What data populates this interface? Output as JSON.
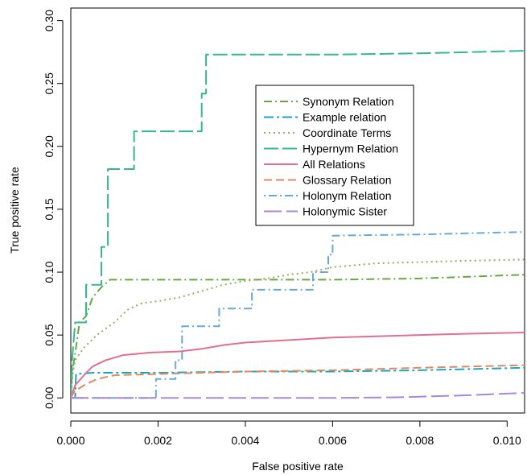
{
  "chart_data": {
    "type": "line",
    "title": "",
    "xlabel": "False positive rate",
    "ylabel": "True positive rate",
    "xlim": [
      0.0,
      0.0104
    ],
    "ylim": [
      -0.012,
      0.31
    ],
    "x_ticks": [
      0.0,
      0.002,
      0.004,
      0.006,
      0.008,
      0.01
    ],
    "x_tick_labels": [
      "0.000",
      "0.002",
      "0.004",
      "0.006",
      "0.008",
      "0.010"
    ],
    "y_ticks": [
      0.0,
      0.05,
      0.1,
      0.15,
      0.2,
      0.25,
      0.3
    ],
    "y_tick_labels": [
      "0.00",
      "0.05",
      "0.10",
      "0.15",
      "0.20",
      "0.25",
      "0.30"
    ],
    "grid": false,
    "legend_position": "top-center",
    "series": [
      {
        "name": "Synonym Relation",
        "color": "#66a844",
        "dash": "10,4,2,4",
        "points": [
          [
            0,
            0
          ],
          [
            3e-05,
            0.02
          ],
          [
            0.00012,
            0.04
          ],
          [
            0.0002,
            0.06
          ],
          [
            0.00035,
            0.065
          ],
          [
            0.0005,
            0.08
          ],
          [
            0.0007,
            0.088
          ],
          [
            0.0009,
            0.094
          ],
          [
            0.002,
            0.094
          ],
          [
            0.004,
            0.094
          ],
          [
            0.006,
            0.094
          ],
          [
            0.008,
            0.095
          ],
          [
            0.0104,
            0.098
          ]
        ]
      },
      {
        "name": "Example relation",
        "color": "#1aa6c0",
        "dash": "12,4,3,4",
        "points": [
          [
            0,
            0
          ],
          [
            0.0001,
            0.0
          ],
          [
            0.00012,
            0.019
          ],
          [
            0.0005,
            0.02
          ],
          [
            0.002,
            0.02
          ],
          [
            0.004,
            0.021
          ],
          [
            0.006,
            0.021
          ],
          [
            0.008,
            0.022
          ],
          [
            0.0104,
            0.024
          ]
        ]
      },
      {
        "name": "Coordinate Terms",
        "color": "#a0a860",
        "dash": "2,4",
        "points": [
          [
            0,
            0
          ],
          [
            5e-05,
            0.02
          ],
          [
            0.0001,
            0.03
          ],
          [
            0.0003,
            0.04
          ],
          [
            0.0006,
            0.05
          ],
          [
            0.001,
            0.06
          ],
          [
            0.0013,
            0.07
          ],
          [
            0.0016,
            0.075
          ],
          [
            0.002,
            0.077
          ],
          [
            0.0025,
            0.08
          ],
          [
            0.003,
            0.085
          ],
          [
            0.0035,
            0.09
          ],
          [
            0.004,
            0.093
          ],
          [
            0.0045,
            0.095
          ],
          [
            0.005,
            0.098
          ],
          [
            0.0055,
            0.1
          ],
          [
            0.006,
            0.104
          ],
          [
            0.007,
            0.107
          ],
          [
            0.008,
            0.108
          ],
          [
            0.009,
            0.109
          ],
          [
            0.0104,
            0.11
          ]
        ]
      },
      {
        "name": "Hypernym Relation",
        "color": "#33b890",
        "dash": "18,5",
        "points": [
          [
            0,
            0
          ],
          [
            3e-05,
            0.03
          ],
          [
            0.0001,
            0.06
          ],
          [
            0.00035,
            0.06
          ],
          [
            0.00035,
            0.09
          ],
          [
            0.0007,
            0.09
          ],
          [
            0.0007,
            0.12
          ],
          [
            0.00085,
            0.12
          ],
          [
            0.00085,
            0.182
          ],
          [
            0.00145,
            0.182
          ],
          [
            0.00145,
            0.212
          ],
          [
            0.003,
            0.212
          ],
          [
            0.003,
            0.242
          ],
          [
            0.0031,
            0.242
          ],
          [
            0.0031,
            0.273
          ],
          [
            0.006,
            0.273
          ],
          [
            0.008,
            0.274
          ],
          [
            0.0104,
            0.276
          ]
        ]
      },
      {
        "name": "All Relations",
        "color": "#e07090",
        "dash": "",
        "points": [
          [
            0,
            0
          ],
          [
            5e-05,
            0.005
          ],
          [
            0.0001,
            0.01
          ],
          [
            0.0003,
            0.018
          ],
          [
            0.0005,
            0.025
          ],
          [
            0.0008,
            0.03
          ],
          [
            0.0012,
            0.034
          ],
          [
            0.0018,
            0.036
          ],
          [
            0.0025,
            0.037
          ],
          [
            0.003,
            0.039
          ],
          [
            0.0035,
            0.042
          ],
          [
            0.004,
            0.044
          ],
          [
            0.005,
            0.046
          ],
          [
            0.006,
            0.048
          ],
          [
            0.007,
            0.049
          ],
          [
            0.008,
            0.05
          ],
          [
            0.009,
            0.051
          ],
          [
            0.0104,
            0.052
          ]
        ]
      },
      {
        "name": "Glossary Relation",
        "color": "#e08a60",
        "dash": "10,5",
        "points": [
          [
            0,
            0
          ],
          [
            8e-05,
            0.005
          ],
          [
            0.0003,
            0.01
          ],
          [
            0.0006,
            0.015
          ],
          [
            0.001,
            0.018
          ],
          [
            0.002,
            0.019
          ],
          [
            0.003,
            0.02
          ],
          [
            0.004,
            0.021
          ],
          [
            0.006,
            0.022
          ],
          [
            0.008,
            0.024
          ],
          [
            0.0104,
            0.026
          ]
        ]
      },
      {
        "name": "Holonym Relation",
        "color": "#6aa8d8",
        "dash": "2,4,10,4",
        "points": [
          [
            0,
            0
          ],
          [
            0.00195,
            0
          ],
          [
            0.00195,
            0.015
          ],
          [
            0.0024,
            0.015
          ],
          [
            0.0024,
            0.03
          ],
          [
            0.00255,
            0.03
          ],
          [
            0.00255,
            0.057
          ],
          [
            0.0034,
            0.057
          ],
          [
            0.0034,
            0.071
          ],
          [
            0.00415,
            0.071
          ],
          [
            0.00415,
            0.086
          ],
          [
            0.00555,
            0.086
          ],
          [
            0.00555,
            0.1
          ],
          [
            0.0059,
            0.1
          ],
          [
            0.0059,
            0.114
          ],
          [
            0.006,
            0.114
          ],
          [
            0.006,
            0.129
          ],
          [
            0.008,
            0.13
          ],
          [
            0.0104,
            0.132
          ]
        ]
      },
      {
        "name": "Holonymic Sister",
        "color": "#a888d8",
        "dash": "22,6",
        "points": [
          [
            0,
            0
          ],
          [
            0.006,
            0
          ],
          [
            0.0075,
            0.0005
          ],
          [
            0.009,
            0.002
          ],
          [
            0.0104,
            0.004
          ]
        ]
      }
    ]
  }
}
